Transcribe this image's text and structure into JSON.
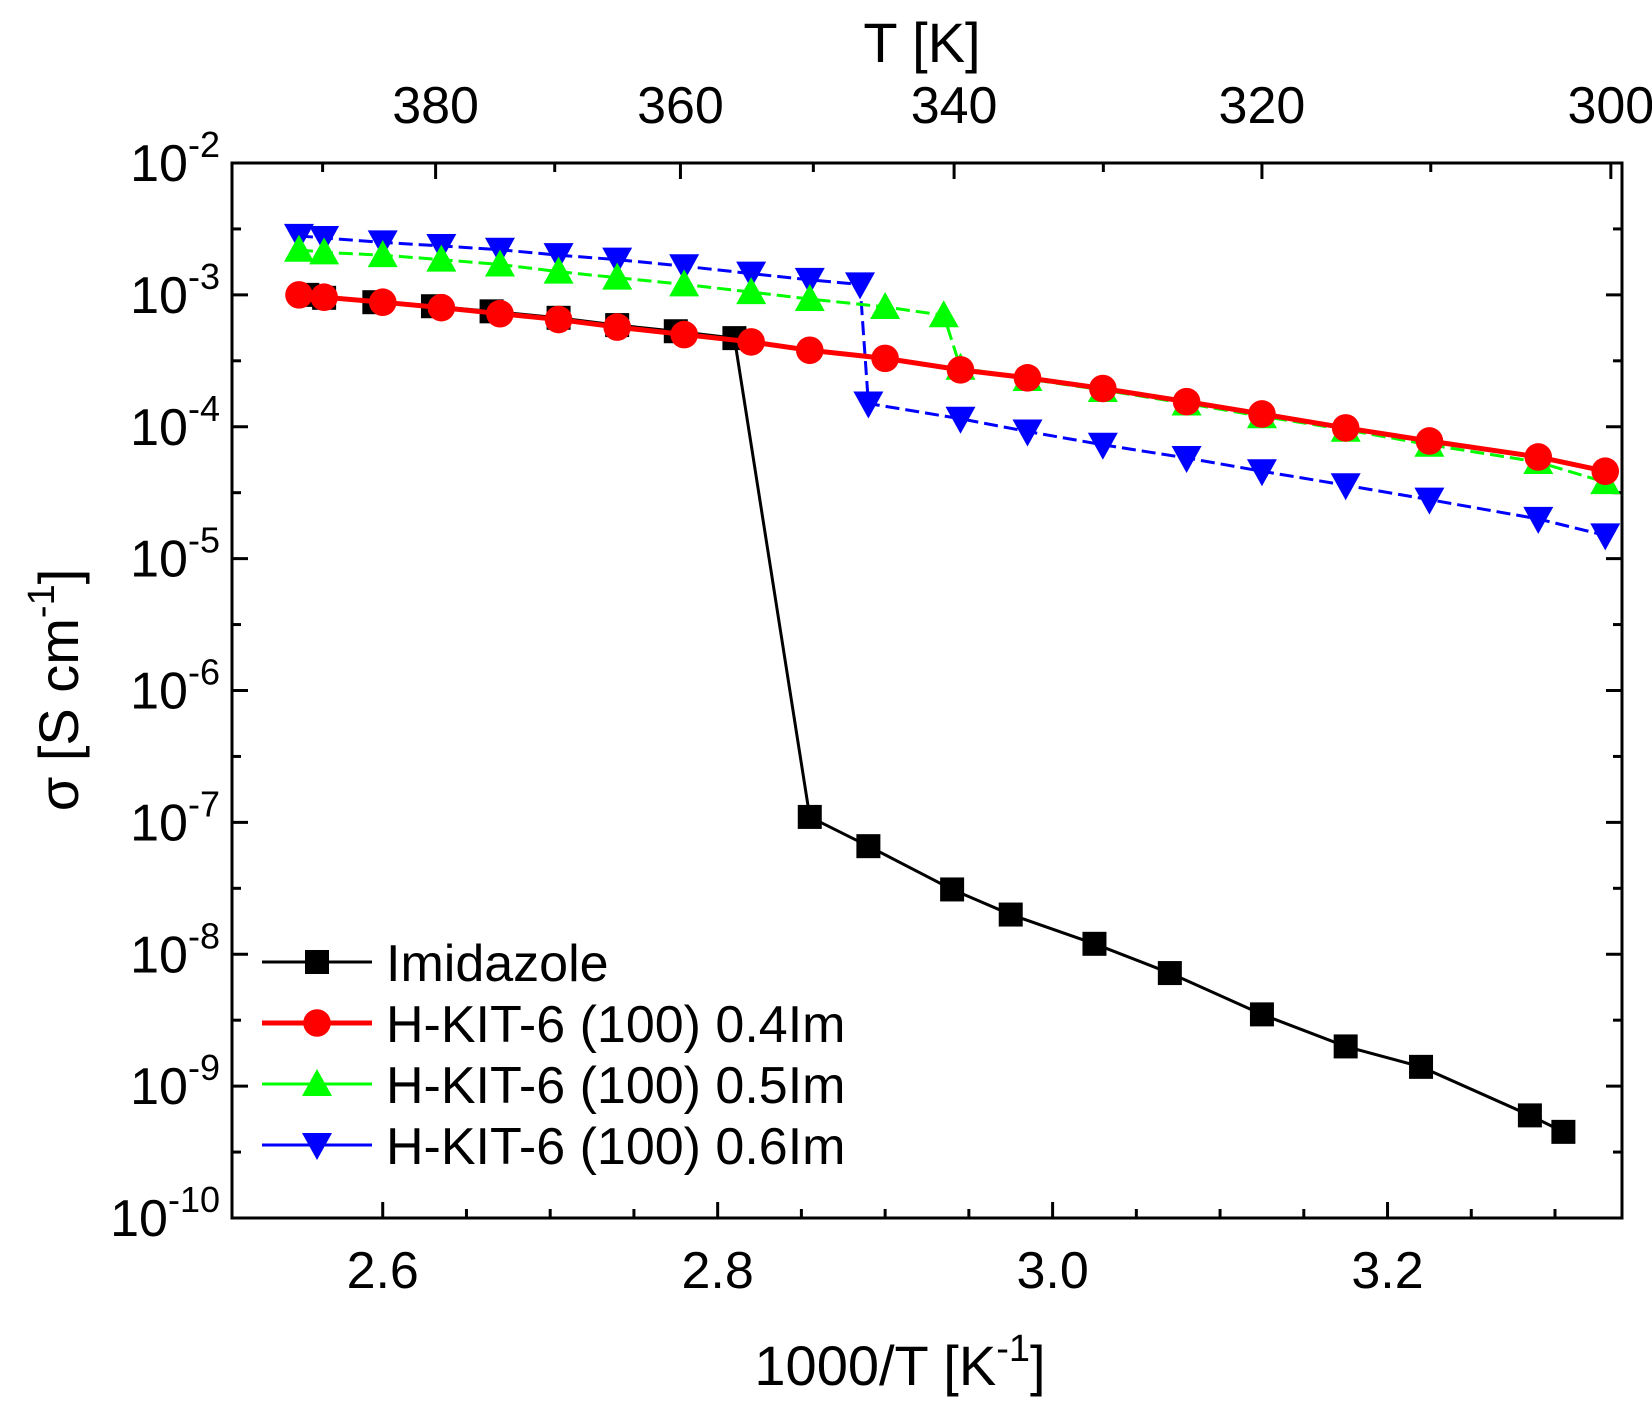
{
  "chart_data": {
    "type": "line",
    "xlabel": "1000/T [K",
    "xlabel_sup": "-1",
    "xlabel_end": "]",
    "ylabel": "σ [S cm",
    "ylabel_sup": "-1",
    "ylabel_end": "]",
    "top_xlabel": "T [K]",
    "xlim": [
      2.51,
      3.34
    ],
    "ylim_log10": [
      -10,
      -2
    ],
    "y_scale": "log",
    "x_ticks": [
      {
        "value": 2.6,
        "label": "2.6"
      },
      {
        "value": 2.8,
        "label": "2.8"
      },
      {
        "value": 3.0,
        "label": "3.0"
      },
      {
        "value": 3.2,
        "label": "3.2"
      }
    ],
    "y_ticks": [
      {
        "exp": -2,
        "base": "10",
        "sup": "-2"
      },
      {
        "exp": -3,
        "base": "10",
        "sup": "-3"
      },
      {
        "exp": -4,
        "base": "10",
        "sup": "-4"
      },
      {
        "exp": -5,
        "base": "10",
        "sup": "-5"
      },
      {
        "exp": -6,
        "base": "10",
        "sup": "-6"
      },
      {
        "exp": -7,
        "base": "10",
        "sup": "-7"
      },
      {
        "exp": -8,
        "base": "10",
        "sup": "-8"
      },
      {
        "exp": -9,
        "base": "10",
        "sup": "-9"
      },
      {
        "exp": -10,
        "base": "10",
        "sup": "-10"
      }
    ],
    "top_ticks": [
      {
        "T": 380,
        "label": "380"
      },
      {
        "T": 360,
        "label": "360"
      },
      {
        "T": 340,
        "label": "340"
      },
      {
        "T": 320,
        "label": "320"
      },
      {
        "T": 300,
        "label": "300"
      }
    ],
    "legend_position": "bottom-left",
    "series": [
      {
        "name": "Imidazole",
        "color": "#000000",
        "marker": "square",
        "x": [
          2.555,
          2.565,
          2.595,
          2.63,
          2.665,
          2.705,
          2.74,
          2.775,
          2.81,
          2.855,
          2.89,
          2.94,
          2.975,
          3.025,
          3.07,
          3.125,
          3.175,
          3.22,
          3.285,
          3.305
        ],
        "y": [
          0.001,
          0.00095,
          0.00088,
          0.00082,
          0.00075,
          0.00067,
          0.00059,
          0.00053,
          0.00047,
          1.1e-07,
          6.6e-08,
          3.1e-08,
          2e-08,
          1.2e-08,
          7.2e-09,
          3.5e-09,
          2e-09,
          1.4e-09,
          6e-10,
          4.5e-10
        ]
      },
      {
        "name": "H-KIT-6 (100) 0.4Im",
        "color": "#ff0000",
        "marker": "circle",
        "x": [
          2.55,
          2.565,
          2.6,
          2.635,
          2.67,
          2.705,
          2.74,
          2.78,
          2.82,
          2.855,
          2.9,
          2.945,
          2.985,
          3.03,
          3.08,
          3.125,
          3.175,
          3.225,
          3.29,
          3.33
        ],
        "y": [
          0.001,
          0.00096,
          0.00088,
          0.0008,
          0.00072,
          0.00065,
          0.00057,
          0.0005,
          0.00044,
          0.00038,
          0.00033,
          0.00027,
          0.000235,
          0.000195,
          0.000155,
          0.000125,
          9.8e-05,
          7.8e-05,
          5.9e-05,
          4.6e-05
        ]
      },
      {
        "name": "H-KIT-6 (100) 0.5Im",
        "color": "#00ff00",
        "marker": "triangle-up",
        "x": [
          2.55,
          2.565,
          2.6,
          2.635,
          2.67,
          2.705,
          2.74,
          2.78,
          2.82,
          2.855,
          2.9,
          2.935,
          2.945,
          2.985,
          3.03,
          3.08,
          3.125,
          3.175,
          3.225,
          3.29,
          3.33
        ],
        "y": [
          0.0022,
          0.0021,
          0.002,
          0.00185,
          0.0017,
          0.0015,
          0.00135,
          0.0012,
          0.00105,
          0.00093,
          0.00081,
          0.0007,
          0.00028,
          0.00023,
          0.00019,
          0.00015,
          0.00012,
          9.5e-05,
          7.3e-05,
          5.4e-05,
          3.8e-05
        ]
      },
      {
        "name": "H-KIT-6 (100) 0.6Im",
        "color": "#0000ff",
        "marker": "triangle-down",
        "x": [
          2.55,
          2.565,
          2.6,
          2.635,
          2.67,
          2.705,
          2.74,
          2.78,
          2.82,
          2.855,
          2.885,
          2.89,
          2.945,
          2.985,
          3.03,
          3.08,
          3.125,
          3.175,
          3.225,
          3.29,
          3.33
        ],
        "y": [
          0.0028,
          0.0027,
          0.0025,
          0.00235,
          0.0022,
          0.002,
          0.00185,
          0.00165,
          0.00145,
          0.0013,
          0.0012,
          0.00015,
          0.000115,
          9.2e-05,
          7.3e-05,
          5.8e-05,
          4.6e-05,
          3.6e-05,
          2.8e-05,
          2e-05,
          1.5e-05
        ]
      }
    ]
  }
}
